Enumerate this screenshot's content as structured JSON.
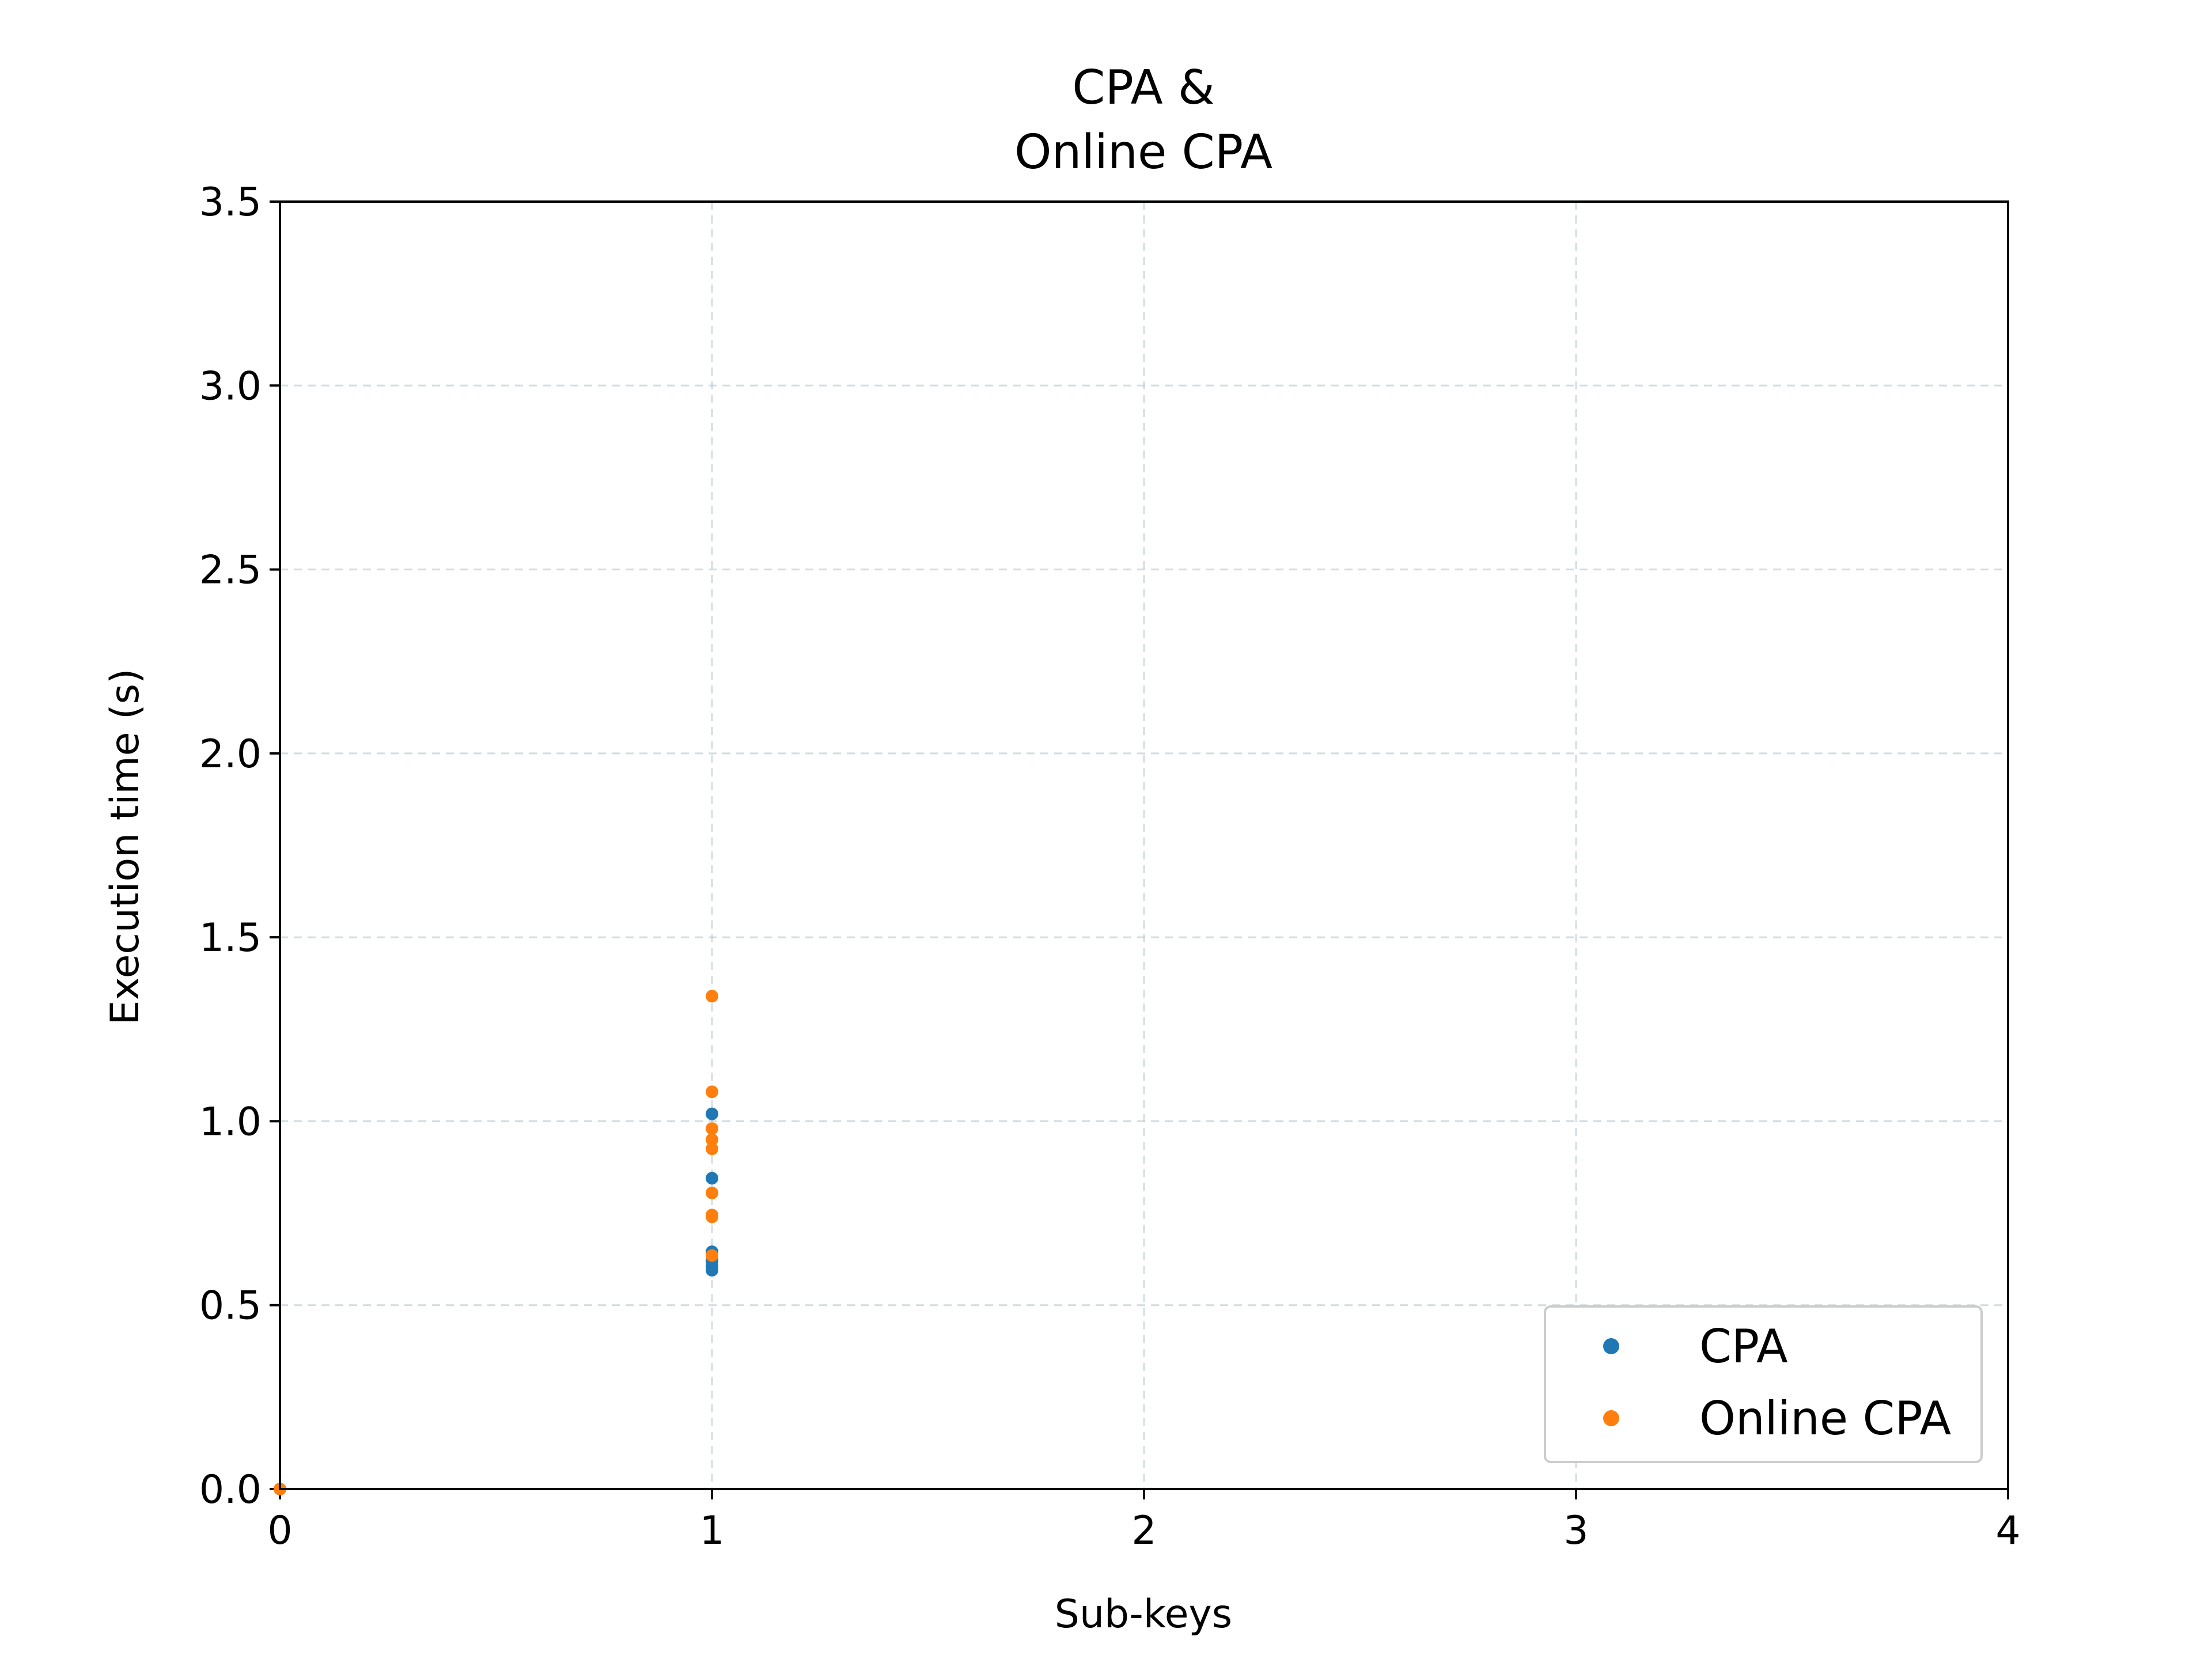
{
  "chart_data": {
    "type": "scatter",
    "title_lines": [
      "CPA &",
      "Online CPA"
    ],
    "xlabel": "Sub-keys",
    "ylabel": "Execution time (s)",
    "xlim": [
      0,
      4
    ],
    "ylim": [
      0,
      3.5
    ],
    "xticks": [
      "0",
      "1",
      "2",
      "3",
      "4"
    ],
    "yticks": [
      "0.0",
      "0.5",
      "1.0",
      "1.5",
      "2.0",
      "2.5",
      "3.0",
      "3.5"
    ],
    "grid": true,
    "legend_position": "lower-right",
    "series": [
      {
        "name": "CPA",
        "color": "#1f77b4",
        "points": [
          {
            "x": 0,
            "y": 0.0
          },
          {
            "x": 1,
            "y": 1.02
          },
          {
            "x": 1,
            "y": 0.845
          },
          {
            "x": 1,
            "y": 0.645
          },
          {
            "x": 1,
            "y": 0.62
          },
          {
            "x": 1,
            "y": 0.605
          },
          {
            "x": 1,
            "y": 0.595
          }
        ]
      },
      {
        "name": "Online CPA",
        "color": "#ff7f0e",
        "points": [
          {
            "x": 0,
            "y": 0.0
          },
          {
            "x": 1,
            "y": 1.34
          },
          {
            "x": 1,
            "y": 1.08
          },
          {
            "x": 1,
            "y": 0.98
          },
          {
            "x": 1,
            "y": 0.95
          },
          {
            "x": 1,
            "y": 0.925
          },
          {
            "x": 1,
            "y": 0.805
          },
          {
            "x": 1,
            "y": 0.745
          },
          {
            "x": 1,
            "y": 0.74
          },
          {
            "x": 1,
            "y": 0.635
          }
        ]
      }
    ]
  }
}
